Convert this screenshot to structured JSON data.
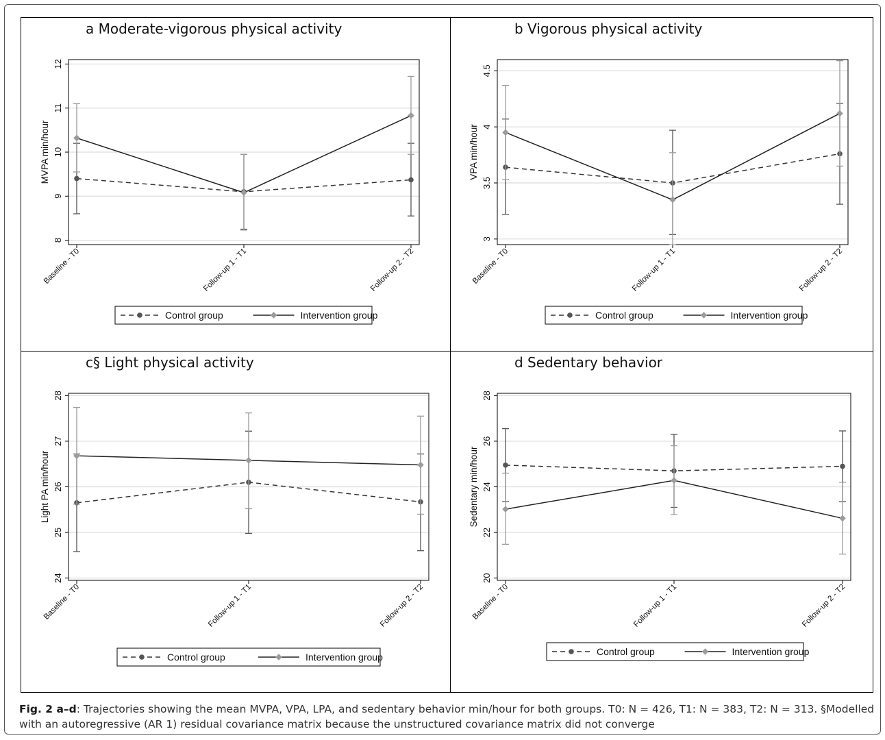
{
  "caption": {
    "label": "Fig. 2 a–d",
    "text": ": Trajectories showing the mean MVPA, VPA, LPA, and sedentary behavior min/hour for both groups. T0: N = 426, T1: N = 383, T2: N = 313. §Modelled with an autoregressive (AR 1) residual covariance matrix because the unstructured covariance matrix did not converge"
  },
  "colors": {
    "control": "#555555",
    "intervention": "#9b9b9b",
    "grid": "#dcdcdc"
  },
  "chart_data": [
    {
      "type": "line",
      "title": "a Moderate-vigorous physical activity",
      "ylabel": "MVPA min/hour",
      "categories": [
        "Baseline - T0",
        "Follow-up 1 - T1",
        "Follow-up 2 - T2"
      ],
      "ylim": [
        7.9,
        12.1
      ],
      "yticks": [
        8,
        9,
        10,
        11,
        12
      ],
      "grid": true,
      "legend_position": "bottom",
      "series": [
        {
          "name": "Control group",
          "values": [
            9.4,
            9.1,
            9.37
          ],
          "ci_low": [
            8.6,
            8.25,
            8.55
          ],
          "ci_high": [
            10.2,
            9.95,
            10.2
          ]
        },
        {
          "name": "Intervention group",
          "values": [
            10.32,
            9.08,
            10.83
          ],
          "ci_low": [
            9.55,
            8.23,
            9.95
          ],
          "ci_high": [
            11.1,
            9.95,
            11.72
          ]
        }
      ]
    },
    {
      "type": "line",
      "title": "b Vigorous physical activity",
      "ylabel": "VPA min/hour",
      "categories": [
        "Baseline - T0",
        "Follow-up 1 - T1",
        "Follow-up 2 - T2"
      ],
      "ylim": [
        2.95,
        4.6
      ],
      "yticks": [
        3,
        3.5,
        4,
        4.5
      ],
      "grid": true,
      "legend_position": "bottom",
      "series": [
        {
          "name": "Control group",
          "values": [
            3.64,
            3.5,
            3.76
          ],
          "ci_low": [
            3.22,
            3.04,
            3.31
          ],
          "ci_high": [
            4.07,
            3.97,
            4.21
          ]
        },
        {
          "name": "Intervention group",
          "values": [
            3.95,
            3.35,
            4.12
          ],
          "ci_low": [
            3.53,
            2.95,
            3.65
          ],
          "ci_high": [
            4.37,
            3.77,
            4.59
          ]
        }
      ]
    },
    {
      "type": "line",
      "title": "c§ Light physical activity",
      "ylabel": "Light PA min/hour",
      "categories": [
        "Baseline - T0",
        "Follow-up 1 - T1",
        "Follow-up 2 - T2"
      ],
      "ylim": [
        23.95,
        28.05
      ],
      "yticks": [
        24,
        25,
        26,
        27,
        28
      ],
      "grid": true,
      "legend_position": "bottom",
      "series": [
        {
          "name": "Control group",
          "values": [
            25.65,
            26.1,
            25.67
          ],
          "ci_low": [
            24.58,
            24.98,
            24.6
          ],
          "ci_high": [
            26.72,
            27.22,
            26.72
          ]
        },
        {
          "name": "Intervention group",
          "values": [
            26.68,
            26.58,
            26.48
          ],
          "ci_low": [
            25.62,
            25.52,
            25.4
          ],
          "ci_high": [
            27.74,
            27.62,
            27.55
          ]
        }
      ]
    },
    {
      "type": "line",
      "title": "d Sedentary behavior",
      "ylabel": "Sedentary min/hour",
      "categories": [
        "Baseline - T0",
        "Follow-up 1 - T1",
        "Follow-up 2 - T2"
      ],
      "ylim": [
        19.9,
        28.1
      ],
      "yticks": [
        20,
        22,
        24,
        26,
        28
      ],
      "grid": true,
      "legend_position": "bottom",
      "series": [
        {
          "name": "Control group",
          "values": [
            24.95,
            24.7,
            24.9
          ],
          "ci_low": [
            23.35,
            23.1,
            23.35
          ],
          "ci_high": [
            26.55,
            26.3,
            26.45
          ]
        },
        {
          "name": "Intervention group",
          "values": [
            23.02,
            24.28,
            22.62
          ],
          "ci_low": [
            21.48,
            22.78,
            21.05
          ],
          "ci_high": [
            24.6,
            25.8,
            24.2
          ]
        }
      ]
    }
  ]
}
